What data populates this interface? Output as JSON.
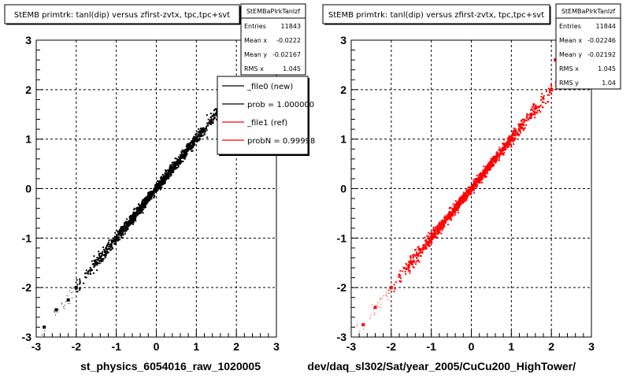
{
  "chart_data": [
    {
      "type": "scatter",
      "title": "StEMB primtrk: tanl(dip) versus zfirst-zvtx, tpc,tpc+svt",
      "xlabel": "st_physics_6054016_raw_1020005",
      "ylabel": "",
      "xlim": [
        -3,
        3
      ],
      "ylim": [
        -3,
        3
      ],
      "x_ticks": [
        "-3",
        "-2",
        "-1",
        "0",
        "1",
        "2",
        "3"
      ],
      "y_ticks": [
        "-3",
        "-2",
        "-1",
        "0",
        "1",
        "2",
        "3"
      ],
      "grid": true,
      "color": "#000000",
      "series": [
        {
          "values": [
            {
              "x": -2.8,
              "y": -2.8
            },
            {
              "x": -2.5,
              "y": -2.45
            },
            {
              "x": -2.2,
              "y": -2.25
            },
            {
              "x": -2.0,
              "y": -2.0
            },
            {
              "x": -1.5,
              "y": -1.5
            },
            {
              "x": -1.0,
              "y": -1.0
            },
            {
              "x": -0.5,
              "y": -0.5
            },
            {
              "x": 0.0,
              "y": 0.0
            },
            {
              "x": 0.5,
              "y": 0.5
            },
            {
              "x": 1.0,
              "y": 1.0
            },
            {
              "x": 1.5,
              "y": 1.5
            },
            {
              "x": 2.0,
              "y": 2.0
            }
          ]
        }
      ],
      "stats": {
        "name": "StEMBaPlrkTanlzf",
        "rows": [
          {
            "label": "Entries",
            "value": "11843"
          },
          {
            "label": "Mean x",
            "value": "-0.0222"
          },
          {
            "label": "Mean y",
            "value": "-0.02167"
          },
          {
            "label": "RMS x",
            "value": "1.045"
          }
        ]
      },
      "legend": {
        "placement": "top-right",
        "entries": [
          {
            "label": "_file0 (new)",
            "color": "#000000"
          },
          {
            "label": "prob = 1.000000",
            "color": "#000000"
          },
          {
            "label": "_file1 (ref)",
            "color": "#ff0000"
          },
          {
            "label": "probN = 0.99998",
            "color": "#ff0000"
          }
        ]
      }
    },
    {
      "type": "scatter",
      "title": "StEMB primtrk: tanl(dip) versus zfirst-zvtx, tpc,tpc+svt",
      "xlabel": "dev/daq_sl302/Sat/year_2005/CuCu200_HighTower/",
      "ylabel": "",
      "xlim": [
        -3,
        3
      ],
      "ylim": [
        -3,
        3
      ],
      "x_ticks": [
        "-3",
        "-2",
        "-1",
        "0",
        "1",
        "2",
        "3"
      ],
      "y_ticks": [
        "-3",
        "-2",
        "-1",
        "0",
        "1",
        "2",
        "3"
      ],
      "grid": true,
      "color": "#ff0000",
      "series": [
        {
          "values": [
            {
              "x": -2.7,
              "y": -2.75
            },
            {
              "x": -2.4,
              "y": -2.4
            },
            {
              "x": -2.0,
              "y": -2.0
            },
            {
              "x": -1.5,
              "y": -1.5
            },
            {
              "x": -1.0,
              "y": -1.0
            },
            {
              "x": -0.5,
              "y": -0.5
            },
            {
              "x": 0.0,
              "y": 0.0
            },
            {
              "x": 0.5,
              "y": 0.5
            },
            {
              "x": 1.0,
              "y": 1.0
            },
            {
              "x": 1.5,
              "y": 1.5
            },
            {
              "x": 2.0,
              "y": 2.0
            },
            {
              "x": 2.1,
              "y": 2.6
            }
          ]
        }
      ],
      "stats": {
        "name": "StEMBaPlrkTanlzf",
        "rows": [
          {
            "label": "Entries",
            "value": "11844"
          },
          {
            "label": "Mean x",
            "value": "-0.02246"
          },
          {
            "label": "Mean y",
            "value": "-0.02192"
          },
          {
            "label": "RMS x",
            "value": "1.045"
          },
          {
            "label": "RMS y",
            "value": "1.04"
          }
        ]
      }
    }
  ]
}
